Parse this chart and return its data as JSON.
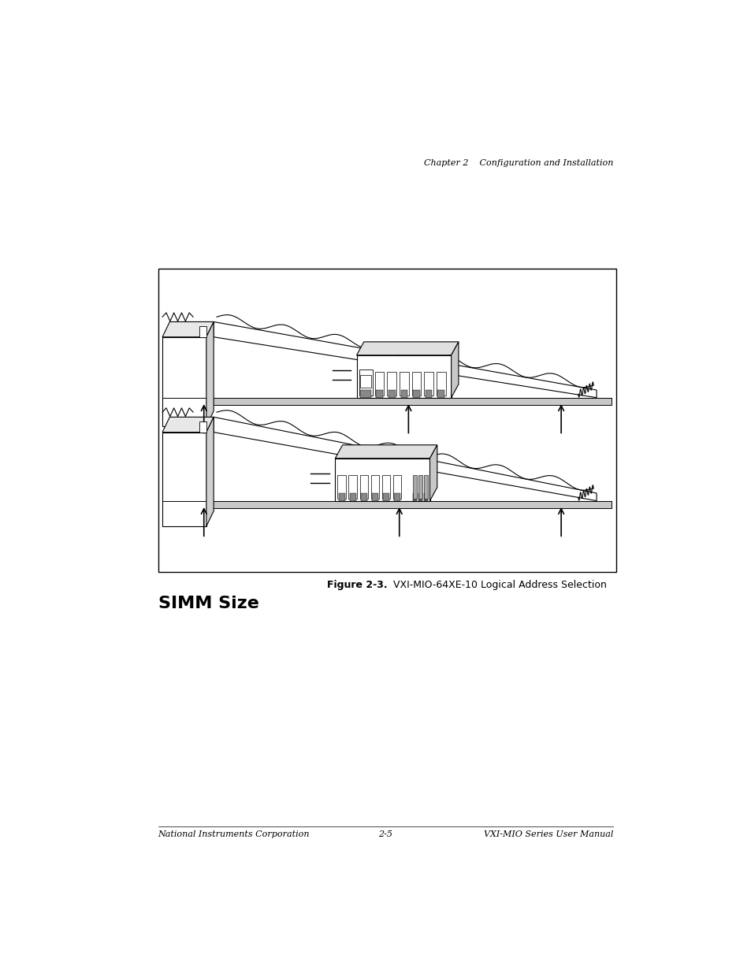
{
  "bg_color": "#ffffff",
  "page_width": 9.54,
  "page_height": 12.35,
  "header_text": "Chapter 2    Configuration and Installation",
  "header_fontsize": 8,
  "figure_caption_bold": "Figure 2-3.",
  "figure_caption_rest": "  VXI-MIO-64XE-10 Logical Address Selection",
  "caption_fontsize": 9,
  "section_title": "SIMM Size",
  "section_title_fontsize": 16,
  "footer_left": "National Instruments Corporation",
  "footer_center": "2-5",
  "footer_right": "VXI-MIO Series User Manual",
  "footer_fontsize": 8
}
